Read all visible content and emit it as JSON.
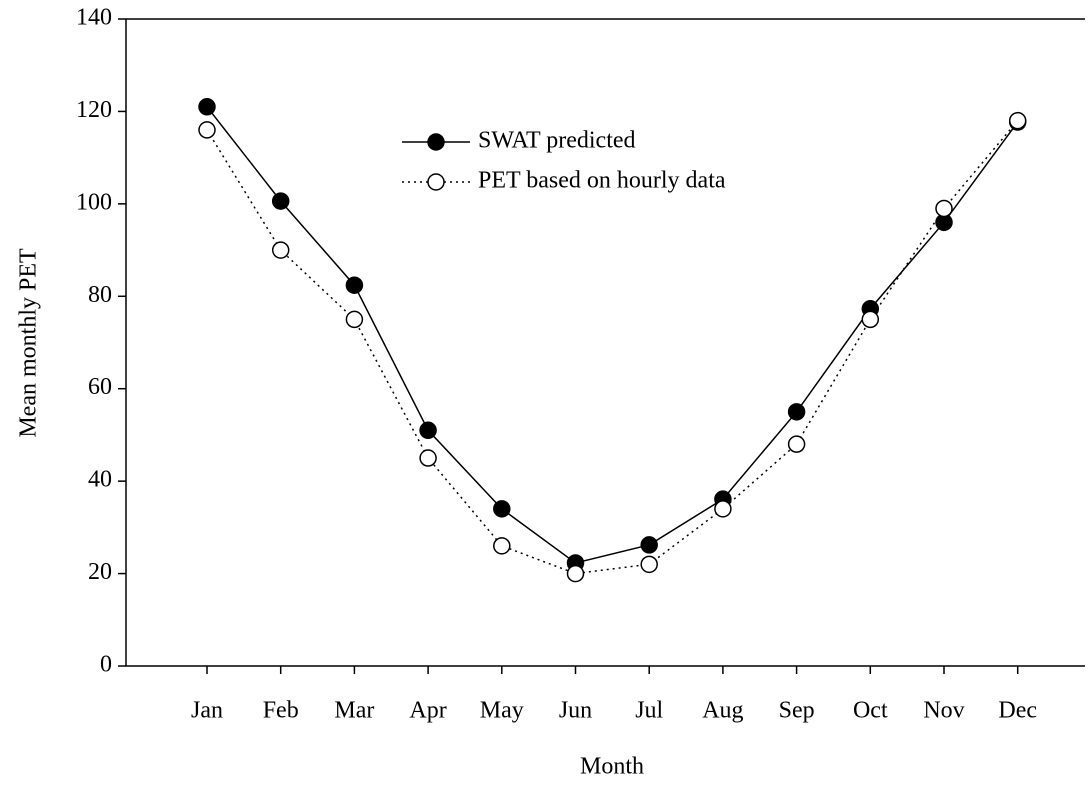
{
  "chart_data": {
    "type": "line",
    "x_label": "Month",
    "y_label": "Mean monthly PET",
    "categories": [
      "Jan",
      "Feb",
      "Mar",
      "Apr",
      "May",
      "Jun",
      "Jul",
      "Aug",
      "Sep",
      "Oct",
      "Nov",
      "Dec"
    ],
    "series": [
      {
        "name": "SWAT predicted",
        "color": "#000000",
        "marker_fill": "#000000",
        "line_style": "solid",
        "values": [
          121,
          100.6,
          82.4,
          51,
          34,
          22.3,
          26.2,
          36.1,
          55,
          77.3,
          96,
          117.7
        ]
      },
      {
        "name": "PET based on hourly data",
        "color": "#000000",
        "marker_fill": "#ffffff",
        "line_style": "dotted",
        "values": [
          116,
          90,
          75,
          45,
          26,
          20,
          22,
          34,
          48,
          75,
          99,
          118
        ]
      }
    ],
    "ylim": [
      0,
      140
    ],
    "yticks": [
      0,
      20,
      40,
      60,
      80,
      100,
      120,
      140
    ],
    "grid": false,
    "legend": "upper center"
  }
}
